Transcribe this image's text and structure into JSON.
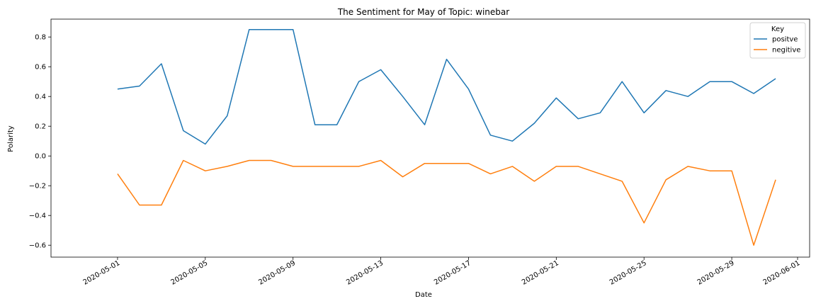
{
  "chart_data": {
    "type": "line",
    "title": "The Sentiment for May of Topic: winebar",
    "xlabel": "Date",
    "ylabel": "Polarity",
    "x_ticks": [
      "2020-05-01",
      "2020-05-05",
      "2020-05-09",
      "2020-05-13",
      "2020-05-17",
      "2020-05-21",
      "2020-05-25",
      "2020-05-29",
      "2020-06-01"
    ],
    "y_ticks": [
      "−0.6",
      "−0.4",
      "−0.2",
      "0.0",
      "0.2",
      "0.4",
      "0.6",
      "0.8"
    ],
    "xlim": [
      "2020-04-29",
      "2020-06-01"
    ],
    "ylim": [
      -0.68,
      0.92
    ],
    "grid": false,
    "legend": {
      "title": "Key",
      "placement": "top-right"
    },
    "x": [
      "2020-05-01",
      "2020-05-02",
      "2020-05-03",
      "2020-05-04",
      "2020-05-05",
      "2020-05-06",
      "2020-05-07",
      "2020-05-08",
      "2020-05-09",
      "2020-05-10",
      "2020-05-11",
      "2020-05-12",
      "2020-05-13",
      "2020-05-14",
      "2020-05-15",
      "2020-05-16",
      "2020-05-17",
      "2020-05-18",
      "2020-05-19",
      "2020-05-20",
      "2020-05-21",
      "2020-05-22",
      "2020-05-23",
      "2020-05-24",
      "2020-05-25",
      "2020-05-26",
      "2020-05-27",
      "2020-05-28",
      "2020-05-29",
      "2020-05-30",
      "2020-05-31"
    ],
    "series": [
      {
        "name": "positve",
        "color": "#1f77b4",
        "values": [
          0.45,
          0.47,
          0.62,
          0.17,
          0.08,
          0.27,
          0.85,
          0.85,
          0.85,
          0.21,
          0.21,
          0.5,
          0.58,
          0.4,
          0.21,
          0.65,
          0.45,
          0.14,
          0.1,
          0.22,
          0.39,
          0.25,
          0.29,
          0.5,
          0.29,
          0.44,
          0.4,
          0.5,
          0.5,
          0.42,
          0.52
        ]
      },
      {
        "name": "negitive",
        "color": "#ff7f0e",
        "values": [
          -0.12,
          -0.33,
          -0.33,
          -0.03,
          -0.1,
          -0.07,
          -0.03,
          -0.03,
          -0.07,
          -0.07,
          -0.07,
          -0.07,
          -0.03,
          -0.14,
          -0.05,
          -0.05,
          -0.05,
          -0.12,
          -0.07,
          -0.17,
          -0.07,
          -0.07,
          -0.12,
          -0.17,
          -0.45,
          -0.16,
          -0.07,
          -0.1,
          -0.1,
          -0.6,
          -0.16
        ]
      }
    ]
  }
}
